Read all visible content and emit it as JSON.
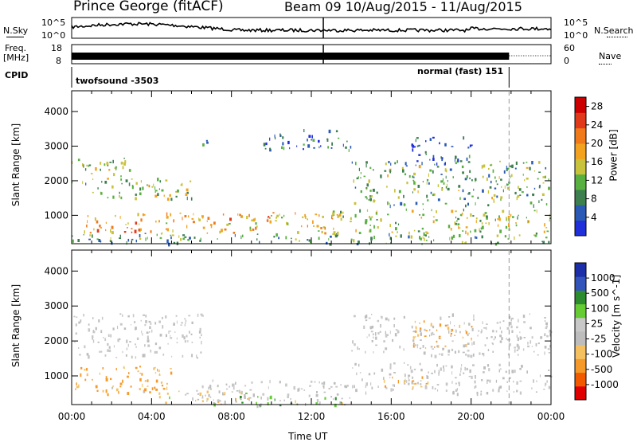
{
  "header": {
    "station": "Prince George (fitACF)",
    "beam_and_dates": "Beam 09  10/Aug/2015 - 11/Aug/2015"
  },
  "small_panels": {
    "nsky_label": "N.Sky",
    "nsearch_label": "N.Search",
    "freq_label_line1": "Freq.",
    "freq_label_line2": "[MHz]",
    "nave_label": "Nave",
    "cpid_label": "CPID",
    "noise_ticks_left": [
      "10^5",
      "10^0"
    ],
    "noise_ticks_right": [
      "10^5",
      "10^0"
    ],
    "freq_ticks_left": [
      "18",
      "8"
    ],
    "freq_ticks_right": [
      "60",
      "0"
    ],
    "cpid_segments": [
      {
        "name": "twofsound",
        "id": "-3503",
        "label": "twofsound  -3503"
      },
      {
        "name": "normal (fast)",
        "id": "151",
        "label": "normal (fast) 151"
      }
    ]
  },
  "x_axis": {
    "label": "Time UT",
    "ticks": [
      "00:00",
      "04:00",
      "08:00",
      "12:00",
      "16:00",
      "20:00",
      "00:00"
    ]
  },
  "colors": {
    "power": [
      "#1f2fd9",
      "#2a5ab5",
      "#3d7f4f",
      "#57b03f",
      "#c9c23b",
      "#f2a21e",
      "#f07a1a",
      "#e03a1a",
      "#cc0000"
    ],
    "velocity": [
      "#e00000",
      "#f25a00",
      "#f59a2a",
      "#f5c060",
      "#bdbdbd",
      "#c8c8c8",
      "#66cc33",
      "#2d8c2d",
      "#3355bb",
      "#1c2fa8"
    ]
  },
  "chart_data": [
    {
      "type": "heatmap",
      "panel": "power",
      "ylabel": "Slant Range [km]",
      "xlabel": "Time UT",
      "ylim": [
        180,
        4600
      ],
      "xlim_hours": [
        0,
        24
      ],
      "yticks": [
        1000,
        2000,
        3000,
        4000
      ],
      "colorbar": {
        "label": "Power [dB]",
        "ticks": [
          4,
          8,
          12,
          16,
          20,
          24,
          28
        ],
        "range": [
          0,
          30
        ]
      },
      "echo_regions": [
        {
          "t_start": 0.0,
          "t_end": 3.0,
          "r_start": 1900,
          "r_end": 2700,
          "level": 12
        },
        {
          "t_start": 1.0,
          "t_end": 6.0,
          "r_start": 1500,
          "r_end": 2100,
          "level": 13
        },
        {
          "t_start": 0.0,
          "t_end": 24.0,
          "r_start": 200,
          "r_end": 500,
          "level": 10
        },
        {
          "t_start": 0.5,
          "t_end": 4.0,
          "r_start": 500,
          "r_end": 1100,
          "level": 20
        },
        {
          "t_start": 4.0,
          "t_end": 13.5,
          "r_start": 500,
          "r_end": 1100,
          "level": 18
        },
        {
          "t_start": 6.5,
          "t_end": 7.0,
          "r_start": 2900,
          "r_end": 3200,
          "level": 6
        },
        {
          "t_start": 9.5,
          "t_end": 14.0,
          "r_start": 2900,
          "r_end": 3500,
          "level": 6
        },
        {
          "t_start": 13.0,
          "t_end": 24.0,
          "r_start": 500,
          "r_end": 1200,
          "level": 14
        },
        {
          "t_start": 14.0,
          "t_end": 24.0,
          "r_start": 1300,
          "r_end": 2600,
          "level": 11
        },
        {
          "t_start": 17.0,
          "t_end": 20.0,
          "r_start": 2500,
          "r_end": 3300,
          "level": 6
        }
      ]
    },
    {
      "type": "heatmap",
      "panel": "velocity",
      "ylabel": "Slant Range [km]",
      "xlabel": "Time UT",
      "ylim": [
        180,
        4600
      ],
      "xlim_hours": [
        0,
        24
      ],
      "yticks": [
        1000,
        2000,
        3000,
        4000
      ],
      "colorbar": {
        "label": "Velocity [m s^-1]",
        "ticks": [
          -1000,
          -500,
          -100,
          -25,
          25,
          100,
          500,
          1000
        ]
      },
      "echo_regions": [
        {
          "t_start": 0.0,
          "t_end": 6.5,
          "r_start": 1500,
          "r_end": 2800,
          "level": 0
        },
        {
          "t_start": 0.0,
          "t_end": 5.0,
          "r_start": 500,
          "r_end": 1300,
          "level": -120
        },
        {
          "t_start": 4.0,
          "t_end": 9.0,
          "r_start": 200,
          "r_end": 600,
          "level": -60
        },
        {
          "t_start": 6.0,
          "t_end": 14.0,
          "r_start": 300,
          "r_end": 900,
          "level": 0
        },
        {
          "t_start": 8.0,
          "t_end": 14.0,
          "r_start": 150,
          "r_end": 450,
          "level": 60
        },
        {
          "t_start": 14.0,
          "t_end": 24.0,
          "r_start": 500,
          "r_end": 1400,
          "level": 0
        },
        {
          "t_start": 15.0,
          "t_end": 18.0,
          "r_start": 700,
          "r_end": 1000,
          "level": -60
        },
        {
          "t_start": 17.0,
          "t_end": 20.0,
          "r_start": 1800,
          "r_end": 2600,
          "level": -120
        },
        {
          "t_start": 14.0,
          "t_end": 24.0,
          "r_start": 1600,
          "r_end": 2800,
          "level": 0
        }
      ]
    }
  ]
}
